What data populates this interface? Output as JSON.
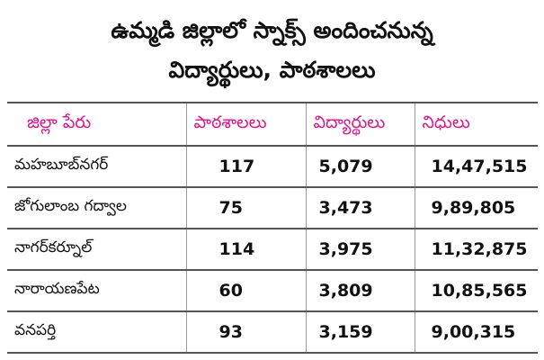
{
  "header": {
    "title_lines": [
      "ఉమ్మడి జిల్లాలో స్నాక్స్ అందించనున్న",
      "విద్యార్థులు, పాఠశాలలు"
    ]
  },
  "table": {
    "columns": [
      "జిల్లా పేరు",
      "పాఠశాలలు",
      "విద్యార్థులు",
      "నిధులు"
    ],
    "rows": [
      [
        "మహబూబ్‌నగర్",
        117,
        "5,079",
        "14,47,515"
      ],
      [
        "జోగులాంబ గద్వాల",
        75,
        "3,473",
        "9,89,805"
      ],
      [
        "నాగర్‌కర్నూల్",
        114,
        "3,975",
        "11,32,875"
      ],
      [
        "నారాయణపేట",
        60,
        "3,809",
        "10,85,565"
      ],
      [
        "వనపర్తి",
        93,
        "3,159",
        "9,00,315"
      ]
    ]
  }
}
